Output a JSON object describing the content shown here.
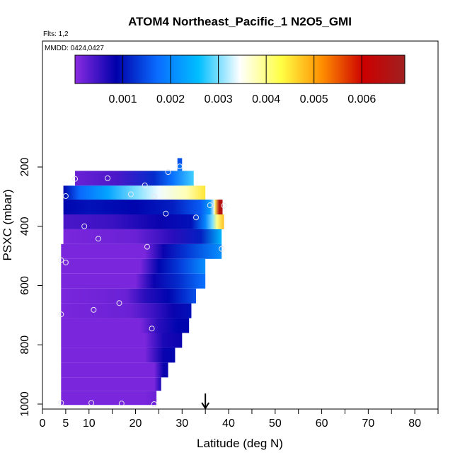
{
  "chart_data": {
    "type": "heatmap",
    "title": "ATOM4 Northeast_Pacific_1 N2O5_GMI",
    "flights_note": "Flts: 1,2",
    "dates_note": "MMDD: 0424,0427",
    "xlabel": "Latitude (deg N)",
    "ylabel": "PSXC (mbar)",
    "xlim": [
      0,
      85
    ],
    "ylim": [
      1010,
      0
    ],
    "x_ticks": [
      0,
      5,
      10,
      20,
      30,
      40,
      50,
      60,
      70,
      80
    ],
    "y_ticks": [
      200,
      400,
      600,
      800,
      1000
    ],
    "colorbar": {
      "range": [
        0,
        0.0069
      ],
      "tick_values": [
        0.001,
        0.002,
        0.003,
        0.004,
        0.005,
        0.006
      ],
      "tick_labels": [
        "0.001",
        "0.002",
        "0.003",
        "0.004",
        "0.005",
        "0.006"
      ],
      "stops": [
        "#8a2be2",
        "#0000aa",
        "#0a6cff",
        "#00bfff",
        "#ffffff",
        "#ffff44",
        "#ff8c00",
        "#cc0000",
        "#a02020"
      ]
    },
    "arrow_latitude": 35,
    "rows": [
      {
        "p": [
          170,
          190
        ],
        "segments": [
          {
            "x": [
              29,
              30
            ],
            "v": [
              0.0015,
              0.0015
            ]
          }
        ]
      },
      {
        "p": [
          190,
          213
        ],
        "segments": [
          {
            "x": [
              29,
              30
            ],
            "v": [
              0.0018,
              0.0018
            ]
          }
        ]
      },
      {
        "p": [
          213,
          263
        ],
        "segments": [
          {
            "x": [
              7,
              16,
              24,
              28,
              32.5
            ],
            "v": [
              0.0002,
              0.0004,
              0.0012,
              0.0018,
              0.0028
            ]
          }
        ]
      },
      {
        "p": [
          263,
          310
        ],
        "segments": [
          {
            "x": [
              4.5,
              8,
              14,
              20,
              25,
              31,
              35
            ],
            "v": [
              0.0009,
              0.0017,
              0.0023,
              0.003,
              0.0034,
              0.0038,
              0.0045
            ]
          }
        ]
      },
      {
        "p": [
          310,
          360
        ],
        "segments": [
          {
            "x": [
              4.5,
              10,
              20,
              28,
              34,
              36,
              37
            ],
            "v": [
              0.0009,
              0.001,
              0.0009,
              0.0011,
              0.0016,
              0.0022,
              0.0035
            ]
          },
          {
            "x": [
              37,
              38,
              38.7
            ],
            "v": [
              0.0042,
              0.0065,
              0.0065
            ]
          }
        ]
      },
      {
        "p": [
          360,
          410
        ],
        "segments": [
          {
            "x": [
              4.5,
              15,
              25,
              32,
              35,
              36.5,
              37.5,
              39
            ],
            "v": [
              0.0004,
              0.0005,
              0.0008,
              0.001,
              0.002,
              0.003,
              0.004,
              0.0048
            ]
          }
        ]
      },
      {
        "p": [
          410,
          460
        ],
        "segments": [
          {
            "x": [
              4.5,
              20,
              28,
              34,
              38.5
            ],
            "v": [
              0.0001,
              0.0002,
              0.0006,
              0.0011,
              0.0025
            ]
          }
        ]
      },
      {
        "p": [
          460,
          510
        ],
        "segments": [
          {
            "x": [
              4,
              22,
              26,
              31,
              38.5
            ],
            "v": [
              0.0001,
              0.0001,
              0.0008,
              0.0013,
              0.0021
            ]
          }
        ]
      },
      {
        "p": [
          510,
          560
        ],
        "segments": [
          {
            "x": [
              4,
              21,
              25,
              30,
              35
            ],
            "v": [
              0.0001,
              0.0001,
              0.0009,
              0.0014,
              0.0021
            ]
          }
        ]
      },
      {
        "p": [
          560,
          610
        ],
        "segments": [
          {
            "x": [
              4,
              20,
              24,
              29,
              35
            ],
            "v": [
              0.0001,
              0.0001,
              0.0008,
              0.0012,
              0.0018
            ]
          }
        ]
      },
      {
        "p": [
          610,
          660
        ],
        "segments": [
          {
            "x": [
              4,
              18,
              22,
              27,
              33
            ],
            "v": [
              0.0001,
              0.0002,
              0.0006,
              0.0009,
              0.0015
            ]
          }
        ]
      },
      {
        "p": [
          660,
          710
        ],
        "segments": [
          {
            "x": [
              4,
              19,
              24,
              28,
              32
            ],
            "v": [
              0.0001,
              0.0002,
              0.0005,
              0.0008,
              0.001
            ]
          }
        ]
      },
      {
        "p": [
          710,
          760
        ],
        "segments": [
          {
            "x": [
              4,
              21,
              25,
              29,
              31.5
            ],
            "v": [
              0.0001,
              0.0001,
              0.0006,
              0.0009,
              0.0009
            ]
          }
        ]
      },
      {
        "p": [
          760,
          810
        ],
        "segments": [
          {
            "x": [
              4,
              22,
              26,
              30
            ],
            "v": [
              0.0001,
              0.0001,
              0.0007,
              0.0008
            ]
          }
        ]
      },
      {
        "p": [
          810,
          860
        ],
        "segments": [
          {
            "x": [
              4,
              22,
              26,
              28.5
            ],
            "v": [
              0.0001,
              0.0001,
              0.0008,
              0.0009
            ]
          }
        ]
      },
      {
        "p": [
          860,
          910
        ],
        "segments": [
          {
            "x": [
              4,
              24,
              26,
              27
            ],
            "v": [
              0.0001,
              0.0001,
              0.0008,
              0.0008
            ]
          }
        ]
      },
      {
        "p": [
          910,
          955
        ],
        "segments": [
          {
            "x": [
              4,
              24,
              25.5
            ],
            "v": [
              0.0001,
              0.0001,
              0.0007
            ]
          }
        ]
      },
      {
        "p": [
          955,
          1003
        ],
        "segments": [
          {
            "x": [
              4,
              22,
              24.5
            ],
            "v": [
              0.0001,
              0.0001,
              0.0002
            ]
          }
        ]
      }
    ],
    "points": [
      [
        7,
        240
      ],
      [
        14,
        238
      ],
      [
        22,
        262
      ],
      [
        27,
        217
      ],
      [
        29.5,
        198
      ],
      [
        5,
        298
      ],
      [
        19,
        292
      ],
      [
        24,
        300
      ],
      [
        36,
        329
      ],
      [
        39,
        330
      ],
      [
        26.5,
        357
      ],
      [
        33,
        370
      ],
      [
        9,
        400
      ],
      [
        12,
        442
      ],
      [
        22.5,
        469
      ],
      [
        38.5,
        476
      ],
      [
        4,
        514
      ],
      [
        5,
        522
      ],
      [
        4,
        697
      ],
      [
        11,
        682
      ],
      [
        16.5,
        659
      ],
      [
        23.5,
        745
      ],
      [
        4,
        996
      ],
      [
        10.5,
        996
      ],
      [
        17,
        998
      ],
      [
        24,
        1000
      ]
    ]
  }
}
